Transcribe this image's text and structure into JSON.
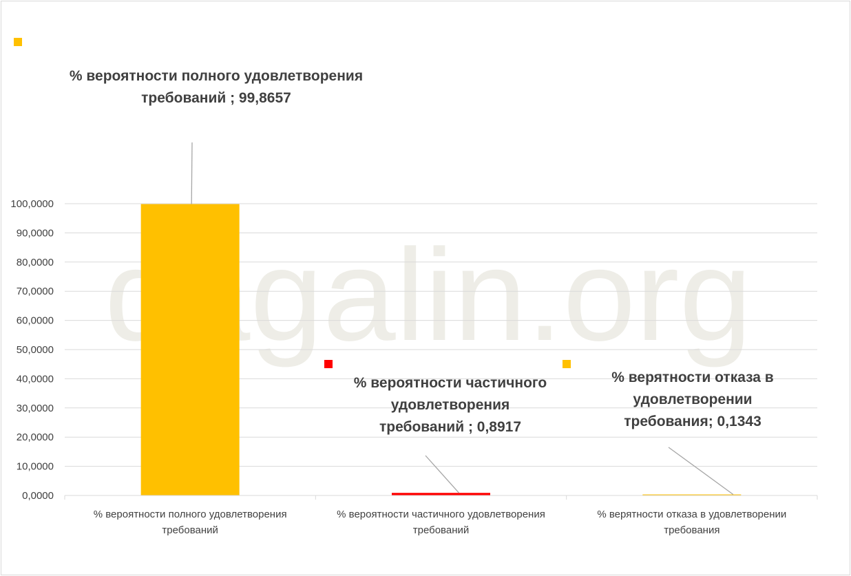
{
  "watermark": "dagalin.org",
  "chart_data": {
    "type": "bar",
    "categories": [
      [
        "% вероятности полного удовлетворения",
        "требований"
      ],
      [
        "% вероятности частичного удовлетворения",
        "требований"
      ],
      [
        "% верятности отказа в удовлетворении",
        "требования"
      ]
    ],
    "values": [
      99.8657,
      0.8917,
      0.1343
    ],
    "colors": [
      "#FFC000",
      "#FF0000",
      "#FFC000"
    ],
    "data_labels": [
      [
        "% вероятности полного удовлетворения",
        "требований ; 99,8657"
      ],
      [
        "% вероятности частичного",
        "удовлетворения",
        "требований ; 0,8917"
      ],
      [
        "% верятности отказа в",
        "удовлетворении",
        "требования; 0,1343"
      ]
    ],
    "ylim": [
      0,
      100
    ],
    "yticks": [
      "0,0000",
      "10,0000",
      "20,0000",
      "30,0000",
      "40,0000",
      "50,0000",
      "60,0000",
      "70,0000",
      "80,0000",
      "90,0000",
      "100,0000"
    ],
    "grid": true,
    "title": "",
    "xlabel": "",
    "ylabel": ""
  }
}
